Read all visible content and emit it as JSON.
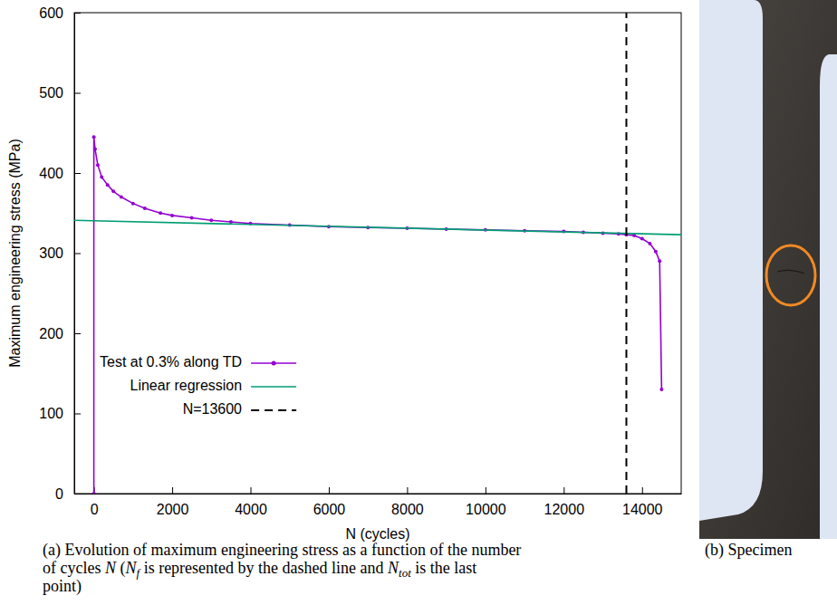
{
  "chart_data": {
    "type": "line",
    "x_label": "N (cycles)",
    "y_label": "Maximum engineering stress (MPa)",
    "xlim": [
      -500,
      15000
    ],
    "ylim": [
      0,
      600
    ],
    "xticks": [
      0,
      2000,
      4000,
      6000,
      8000,
      10000,
      12000,
      14000
    ],
    "yticks": [
      0,
      100,
      200,
      300,
      400,
      500,
      600
    ],
    "grid": false,
    "legend": "lower left",
    "series": [
      {
        "name": "Test at 0.3% along TD",
        "color": "#9400d3",
        "type": "line",
        "marker": "circle",
        "line_style": "solid",
        "x": [
          0,
          0,
          30,
          100,
          200,
          350,
          500,
          700,
          1000,
          1300,
          1700,
          2000,
          2500,
          3000,
          3500,
          4000,
          5000,
          6000,
          7000,
          8000,
          9000,
          10000,
          11000,
          12000,
          12500,
          13000,
          13400,
          13600,
          13800,
          14000,
          14200,
          14350,
          14450,
          14500
        ],
        "values": [
          0,
          445,
          430,
          410,
          395,
          385,
          377,
          370,
          362,
          356,
          350,
          347,
          344,
          341,
          339,
          337,
          335,
          333,
          332,
          331,
          330,
          329,
          328,
          327,
          326,
          325,
          324,
          323,
          322,
          318,
          312,
          302,
          290,
          130
        ]
      },
      {
        "name": "Linear regression",
        "color": "#009e73",
        "type": "line",
        "marker": "none",
        "line_style": "solid",
        "x": [
          -500,
          15000
        ],
        "values": [
          341,
          323
        ]
      },
      {
        "name": "N=13600",
        "color": "#000000",
        "type": "line",
        "marker": "none",
        "line_style": "dashed",
        "x": [
          13600,
          13600
        ],
        "values": [
          0,
          600
        ]
      }
    ]
  },
  "caption_a": [
    [
      {
        "text": "(a) Evolution of maximum engineering stress as a function of the number"
      }
    ],
    [
      {
        "text": "of cycles "
      },
      {
        "text": "N",
        "italic": true
      },
      {
        "text": " ("
      },
      {
        "text": "N",
        "italic": true
      },
      {
        "text": "f",
        "italic": true,
        "sub": true
      },
      {
        "text": " is represented by the dashed line and "
      },
      {
        "text": "N",
        "italic": true
      },
      {
        "text": "tot",
        "italic": true,
        "sub": true
      },
      {
        "text": " is the last"
      }
    ],
    [
      {
        "text": "point)"
      }
    ]
  ],
  "caption_b": "(b) Specimen"
}
